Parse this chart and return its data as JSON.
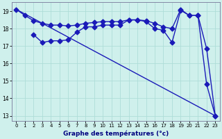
{
  "xlabel": "Graphe des températures (°c)",
  "bg_color": "#cff0ec",
  "grid_color": "#aeddd8",
  "line_color": "#1a1ab8",
  "line_width": 1.0,
  "marker_size": 3.5,
  "xlim": [
    -0.5,
    23.5
  ],
  "ylim": [
    12.7,
    19.5
  ],
  "yticks": [
    13,
    14,
    15,
    16,
    17,
    18,
    19
  ],
  "xticks": [
    0,
    1,
    2,
    3,
    4,
    5,
    6,
    7,
    8,
    9,
    10,
    11,
    12,
    13,
    14,
    15,
    16,
    17,
    18,
    19,
    20,
    21,
    22,
    23
  ],
  "line1_x": [
    0,
    1,
    2,
    3,
    4,
    5,
    6,
    7,
    8,
    9,
    10,
    11,
    12,
    13,
    14,
    15,
    16,
    17,
    18,
    19,
    20,
    21,
    22,
    23
  ],
  "line1_y": [
    19.1,
    18.75,
    18.45,
    18.3,
    18.2,
    18.2,
    18.15,
    18.2,
    18.3,
    18.35,
    18.4,
    18.4,
    18.4,
    18.5,
    18.5,
    18.45,
    18.3,
    18.1,
    18.0,
    19.1,
    18.75,
    18.75,
    16.85,
    13.0
  ],
  "line2_x": [
    2,
    3,
    4,
    5,
    6,
    7,
    8,
    9,
    10,
    11,
    12,
    13,
    14,
    15,
    16,
    17,
    18,
    19,
    20,
    21,
    22,
    23
  ],
  "line2_y": [
    17.65,
    17.2,
    17.3,
    17.3,
    17.35,
    17.8,
    18.1,
    18.1,
    18.2,
    18.2,
    18.2,
    18.5,
    18.5,
    18.4,
    18.0,
    17.9,
    17.2,
    19.05,
    18.75,
    18.75,
    14.8,
    13.0
  ],
  "line3_x": [
    0,
    23
  ],
  "line3_y": [
    19.1,
    13.0
  ]
}
